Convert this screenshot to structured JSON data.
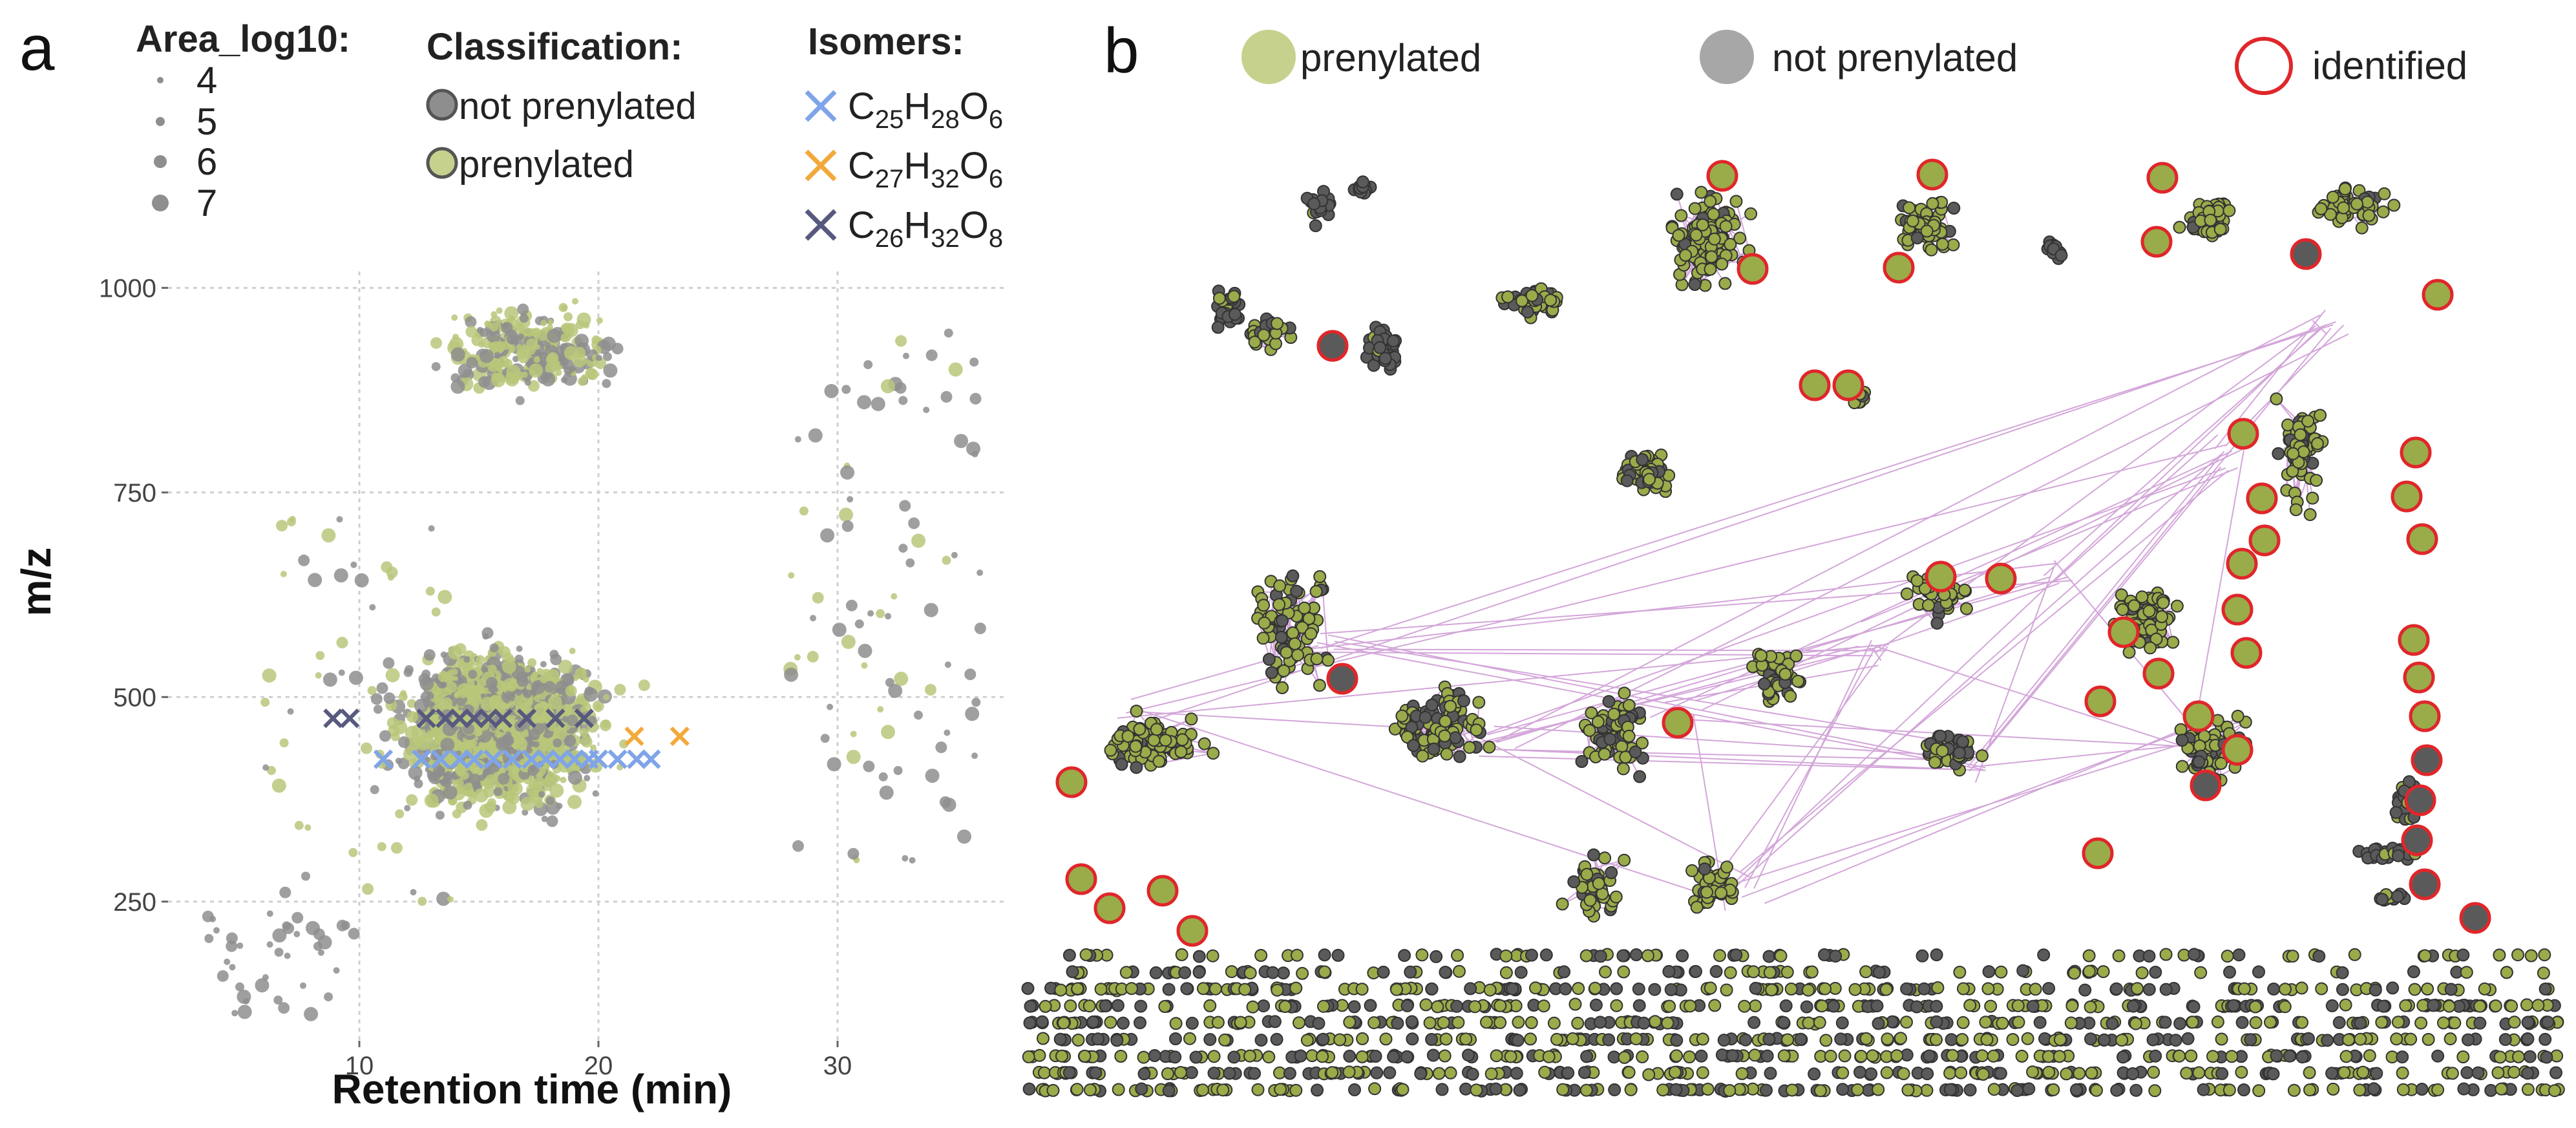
{
  "figure": {
    "panel_a_label": "a",
    "panel_b_label": "b"
  },
  "legend_a": {
    "area_title": "Area_log10:",
    "area_levels": [
      "4",
      "5",
      "6",
      "7"
    ],
    "class_title": "Classification:",
    "class_items": [
      "not prenylated",
      "prenylated"
    ],
    "isomer_title": "Isomers:",
    "isomers": [
      {
        "c": "25",
        "h": "28",
        "o": "6",
        "color": "#7fa4e8"
      },
      {
        "c": "27",
        "h": "32",
        "o": "6",
        "color": "#f2a93b"
      },
      {
        "c": "26",
        "h": "32",
        "o": "8",
        "color": "#58597e"
      }
    ]
  },
  "colors": {
    "prenylated": "#b8c77a",
    "not_prenylated": "#8e8e8e",
    "network_prenylated": "#9aab4a",
    "network_not": "#5a5a5a",
    "identified_ring": "#e0262a",
    "edge": "#d3a6d9"
  },
  "chart_data": {
    "type": "scatter",
    "title": "",
    "xlabel": "Retention time (min)",
    "ylabel": "m/z",
    "xlim": [
      2,
      37
    ],
    "ylim": [
      80,
      1020
    ],
    "xticks": [
      10,
      20,
      30
    ],
    "yticks": [
      250,
      500,
      750,
      1000
    ],
    "grid": true,
    "legend_position": "top",
    "isomer_series": [
      {
        "name": "C25H28O6",
        "color": "#7fa4e8",
        "points": [
          [
            11,
            424
          ],
          [
            12.6,
            424
          ],
          [
            13.4,
            424
          ],
          [
            14.2,
            424
          ],
          [
            14.8,
            424
          ],
          [
            15.6,
            424
          ],
          [
            16.4,
            424
          ],
          [
            17.2,
            424
          ],
          [
            17.8,
            424
          ],
          [
            18.4,
            424
          ],
          [
            19,
            424
          ],
          [
            19.6,
            424
          ],
          [
            20,
            424
          ],
          [
            20.8,
            424
          ],
          [
            21.6,
            424
          ],
          [
            22.2,
            424
          ]
        ]
      },
      {
        "name": "C27H32O6",
        "color": "#f2a93b",
        "points": [
          [
            21.5,
            452
          ],
          [
            23.4,
            452
          ]
        ]
      },
      {
        "name": "C26H32O8",
        "color": "#58597e",
        "points": [
          [
            8.9,
            474
          ],
          [
            9.6,
            474
          ],
          [
            12.8,
            474
          ],
          [
            13.6,
            474
          ],
          [
            14.2,
            474
          ],
          [
            14.8,
            474
          ],
          [
            15.4,
            474
          ],
          [
            16,
            474
          ],
          [
            17,
            474
          ],
          [
            18.2,
            474
          ],
          [
            19.4,
            474
          ]
        ]
      }
    ]
  },
  "network_legend": {
    "prenylated": "prenylated",
    "not_prenylated": "not prenylated",
    "identified": "identified"
  }
}
